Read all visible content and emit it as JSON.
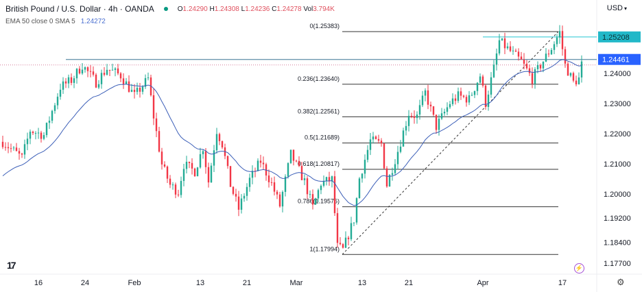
{
  "header": {
    "title": "British Pound / U.S. Dollar · 4h · OANDA",
    "ohlc": {
      "o_label": "O",
      "o": "1.24290",
      "h_label": "H",
      "h": "1.24308",
      "l_label": "L",
      "l": "1.24236",
      "c_label": "C",
      "c": "1.24278",
      "vol_label": "Vol",
      "vol": "3.794K"
    },
    "indicator": {
      "label": "EMA 50 close 0 SMA 5",
      "value": "1.24272"
    },
    "currency": "USD",
    "currency_icon": "chevron-down-icon"
  },
  "footer": {
    "logo": "TV",
    "bolt_icon": "lightning-icon",
    "settings_icon": "gear-icon"
  },
  "colors": {
    "up": "#22ab94",
    "down": "#f23645",
    "ema": "#3c5fb8",
    "fib": "#333333",
    "hline": "#5f8ea8",
    "resistance": "#4fd0dc",
    "resistance_label": "#22b8c8",
    "hline_label": "#2962ff",
    "last_price": "#d67a9a"
  },
  "chart_data": {
    "type": "candlestick",
    "title": "British Pound / U.S. Dollar · 4h · OANDA",
    "ylim": [
      1.1745,
      1.2645
    ],
    "y_ticks": [
      "1.24000",
      "1.23000",
      "1.22000",
      "1.21000",
      "1.20000",
      "1.19200",
      "1.18400",
      "1.17700"
    ],
    "y_tick_values": [
      1.24,
      1.23,
      1.22,
      1.21,
      1.2,
      1.192,
      1.184,
      1.177
    ],
    "x_ticks": [
      {
        "label": "16",
        "bar": 13
      },
      {
        "label": "24",
        "bar": 30
      },
      {
        "label": "Feb",
        "bar": 48
      },
      {
        "label": "13",
        "bar": 72
      },
      {
        "label": "21",
        "bar": 89
      },
      {
        "label": "Mar",
        "bar": 107
      },
      {
        "label": "13",
        "bar": 131
      },
      {
        "label": "21",
        "bar": 148
      },
      {
        "label": "Apr",
        "bar": 175
      },
      {
        "label": "17",
        "bar": 204
      }
    ],
    "price_path": [
      [
        0,
        1.2173
      ],
      [
        7,
        1.212
      ],
      [
        10,
        1.2211
      ],
      [
        15,
        1.2195
      ],
      [
        21,
        1.2355
      ],
      [
        25,
        1.2377
      ],
      [
        29,
        1.2427
      ],
      [
        34,
        1.237
      ],
      [
        38,
        1.2416
      ],
      [
        43,
        1.2393
      ],
      [
        48,
        1.2325
      ],
      [
        53,
        1.2382
      ],
      [
        55,
        1.2257
      ],
      [
        58,
        1.2098
      ],
      [
        61,
        1.203
      ],
      [
        64,
        1.2007
      ],
      [
        66,
        1.2098
      ],
      [
        70,
        1.2075
      ],
      [
        73,
        1.2155
      ],
      [
        75,
        1.2041
      ],
      [
        78,
        1.2211
      ],
      [
        80,
        1.2166
      ],
      [
        83,
        1.203
      ],
      [
        86,
        1.195
      ],
      [
        90,
        1.2048
      ],
      [
        94,
        1.2109
      ],
      [
        98,
        1.2034
      ],
      [
        101,
        1.1961
      ],
      [
        105,
        1.2132
      ],
      [
        110,
        1.2041
      ],
      [
        113,
        1.1955
      ],
      [
        116,
        1.2036
      ],
      [
        120,
        1.2048
      ],
      [
        122,
        1.1825
      ],
      [
        124,
        1.1814
      ],
      [
        128,
        1.1916
      ],
      [
        130,
        1.2052
      ],
      [
        134,
        1.2177
      ],
      [
        138,
        1.2166
      ],
      [
        140,
        1.203
      ],
      [
        144,
        1.2143
      ],
      [
        148,
        1.2268
      ],
      [
        151,
        1.2257
      ],
      [
        154,
        1.2336
      ],
      [
        158,
        1.2223
      ],
      [
        163,
        1.2302
      ],
      [
        166,
        1.2325
      ],
      [
        170,
        1.2314
      ],
      [
        174,
        1.2393
      ],
      [
        176,
        1.2302
      ],
      [
        179,
        1.2416
      ],
      [
        181,
        1.2507
      ],
      [
        185,
        1.2473
      ],
      [
        189,
        1.2439
      ],
      [
        193,
        1.2382
      ],
      [
        196,
        1.2427
      ],
      [
        200,
        1.2484
      ],
      [
        203,
        1.2536
      ],
      [
        205,
        1.2427
      ],
      [
        208,
        1.237
      ],
      [
        210,
        1.2382
      ],
      [
        211,
        1.2428
      ]
    ],
    "ema_start": 1.2052,
    "fib": {
      "from_bar": 123,
      "to_bar": 202,
      "end_bar": 202,
      "levels": [
        {
          "ratio": 0,
          "price": 1.25383,
          "label": "0(1.25383)"
        },
        {
          "ratio": 0.236,
          "price": 1.2364,
          "label": "0.236(1.23640)"
        },
        {
          "ratio": 0.382,
          "price": 1.22561,
          "label": "0.382(1.22561)"
        },
        {
          "ratio": 0.5,
          "price": 1.21689,
          "label": "0.5(1.21689)"
        },
        {
          "ratio": 0.618,
          "price": 1.20817,
          "label": "0.618(1.20817)"
        },
        {
          "ratio": 0.786,
          "price": 1.19576,
          "label": "0.786(1.19576)"
        },
        {
          "ratio": 1,
          "price": 1.17994,
          "label": "1(1.17994)"
        }
      ]
    },
    "horizontal_lines": [
      {
        "price": 1.24461,
        "label": "1.24461",
        "from_bar": 23,
        "kind": "support"
      },
      {
        "price": 1.25208,
        "label": "1.25208",
        "from_bar": 175,
        "kind": "resistance"
      }
    ],
    "last_price": 1.24278
  }
}
